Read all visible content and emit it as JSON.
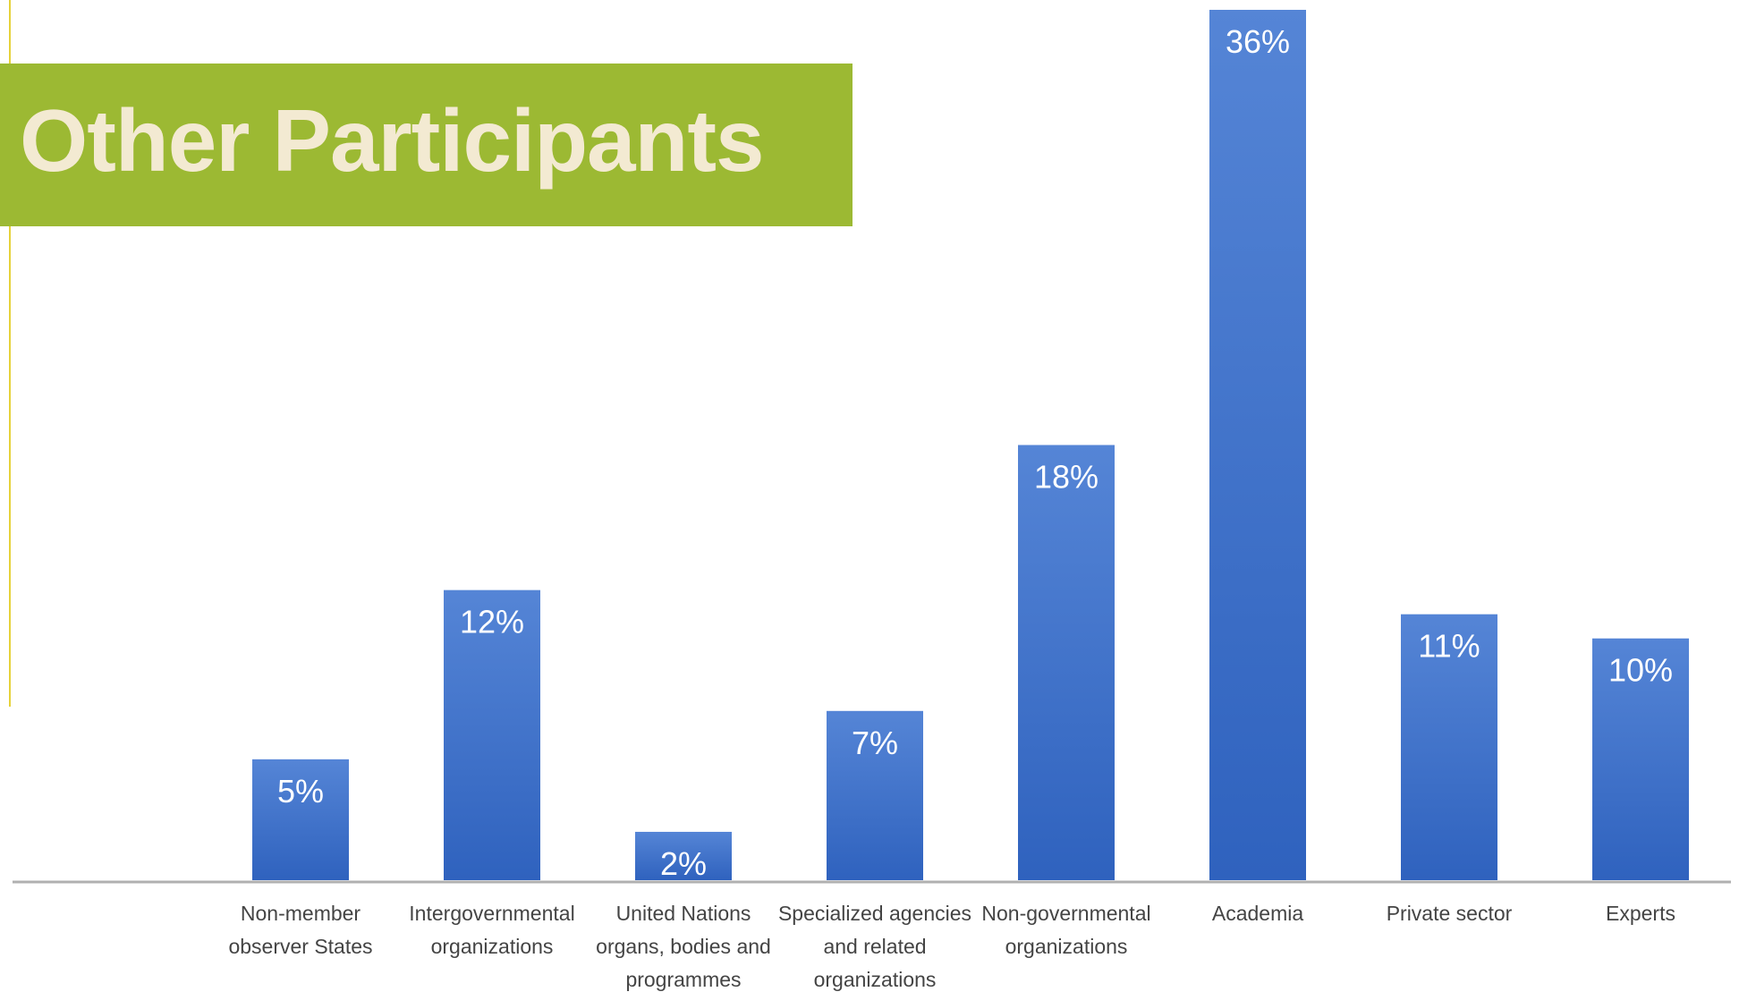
{
  "title": "Other Participants",
  "colors": {
    "banner": "#9cb933",
    "title_text": "#f3ead2",
    "bar_top": "#5585d6",
    "bar_bottom": "#2f62be",
    "axis": "#b0b0b0",
    "left_rule": "#e6d23a"
  },
  "chart_data": {
    "type": "bar",
    "categories": [
      [
        "Non-member",
        "observer States"
      ],
      [
        "Intergovernmental",
        "organizations"
      ],
      [
        "United Nations",
        "organs, bodies and",
        "programmes"
      ],
      [
        "Specialized agencies",
        "and related",
        "organizations"
      ],
      [
        "Non-governmental",
        "organizations"
      ],
      [
        "Academia"
      ],
      [
        "Private sector"
      ],
      [
        "Experts"
      ]
    ],
    "values": [
      5,
      12,
      2,
      7,
      18,
      36,
      11,
      10
    ],
    "data_labels": [
      "5%",
      "12%",
      "2%",
      "7%",
      "18%",
      "36%",
      "11%",
      "10%"
    ],
    "unit": "%",
    "ylim": [
      0,
      36
    ],
    "grid": false,
    "legend": "none"
  }
}
